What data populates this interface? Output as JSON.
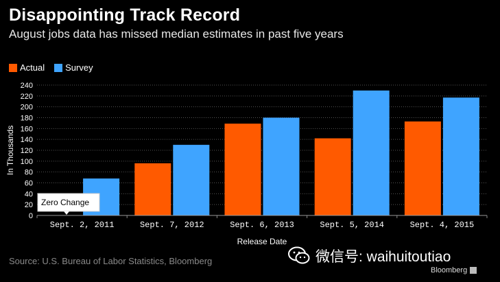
{
  "title": "Disappointing Track Record",
  "subtitle": "August jobs data has missed median estimates in past five years",
  "source": "Source: U.S. Bureau of Labor Statistics, Bloomberg",
  "watermark": "微信号: waihuitoutiao",
  "brand": "Bloomberg",
  "chart_data": {
    "type": "bar",
    "categories": [
      "Sept. 2, 2011",
      "Sept. 7, 2012",
      "Sept. 6, 2013",
      "Sept. 5, 2014",
      "Sept. 4, 2015"
    ],
    "series": [
      {
        "name": "Actual",
        "color": "#ff5a00",
        "values": [
          0,
          96,
          169,
          142,
          173
        ]
      },
      {
        "name": "Survey",
        "color": "#3fa4ff",
        "values": [
          68,
          130,
          180,
          230,
          217
        ]
      }
    ],
    "xlabel": "Release Date",
    "ylabel": "In Thousands",
    "ylim": [
      0,
      240
    ],
    "yticks": [
      0,
      20,
      40,
      60,
      80,
      100,
      120,
      140,
      160,
      180,
      200,
      220,
      240
    ],
    "grid": true,
    "legend_position": "top-left",
    "annotation": "Zero Change"
  }
}
